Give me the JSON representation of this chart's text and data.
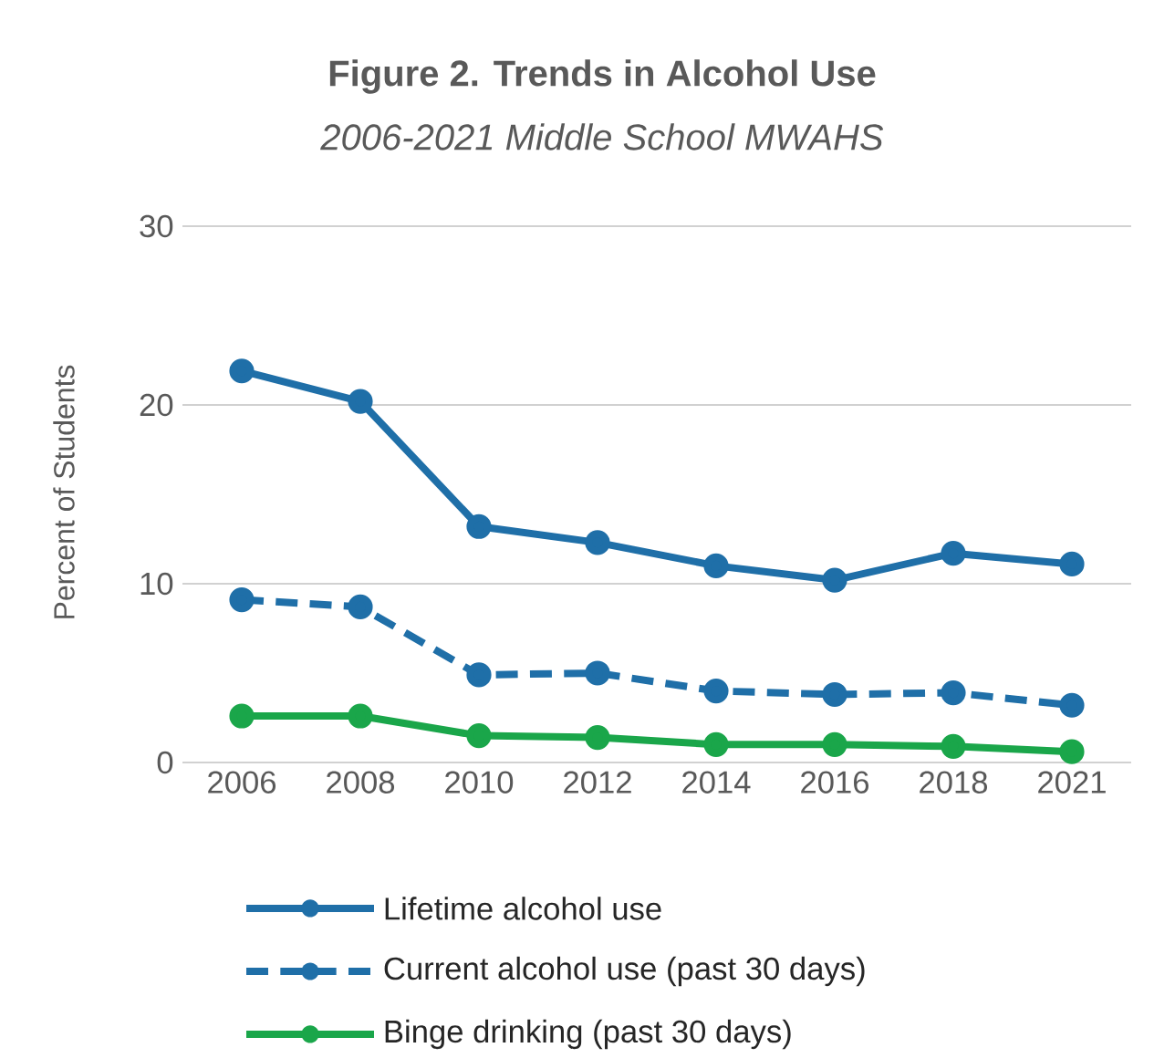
{
  "chart_data": {
    "type": "line",
    "title": "Figure 2. Trends in Alcohol Use",
    "subtitle": "2006-2021 Middle School MWAHS",
    "ylabel": "Percent of Students",
    "categories": [
      "2006",
      "2008",
      "2010",
      "2012",
      "2014",
      "2016",
      "2018",
      "2021"
    ],
    "series": [
      {
        "name": "Lifetime alcohol use",
        "color": "#1f6fa8",
        "line_style": "solid",
        "values": [
          21.9,
          20.2,
          13.2,
          12.3,
          11.0,
          10.2,
          11.7,
          11.1
        ]
      },
      {
        "name": "Current alcohol use (past 30 days)",
        "color": "#1f6fa8",
        "line_style": "dashed",
        "values": [
          9.1,
          8.7,
          4.9,
          5.0,
          4.0,
          3.8,
          3.9,
          3.2
        ]
      },
      {
        "name": "Binge drinking (past 30 days)",
        "color": "#1aa64a",
        "line_style": "solid",
        "values": [
          2.6,
          2.6,
          1.5,
          1.4,
          1.0,
          1.0,
          0.9,
          0.6
        ]
      }
    ],
    "ylim": [
      0,
      30
    ],
    "yticks": [
      0,
      10,
      20,
      30
    ],
    "grid": "y",
    "legend": "bottom",
    "marker": "circle"
  }
}
